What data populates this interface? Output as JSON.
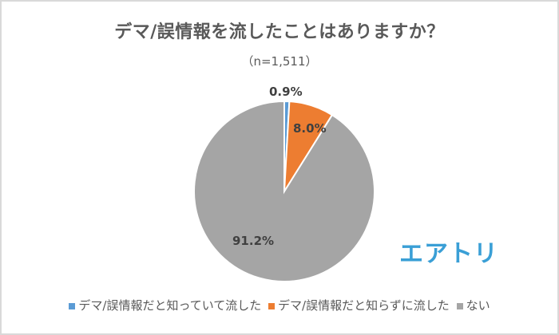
{
  "chart_data": {
    "type": "pie",
    "title": "デマ/誤情報を流したことはありますか？",
    "subtitle": "（n=1,511）",
    "categories": [
      "デマ/誤情報だと知っていて流した",
      "デマ/誤情報だと知らずに流した",
      "ない"
    ],
    "values": [
      0.9,
      8.0,
      91.2
    ],
    "labels": [
      "0.9%",
      "8.0%",
      "91.2%"
    ],
    "colors": [
      "#5b9bd5",
      "#ed7d31",
      "#a5a5a5"
    ],
    "legend_position": "bottom"
  },
  "brand": {
    "logo_text": "エアトリ",
    "color": "#3a9fd6"
  }
}
